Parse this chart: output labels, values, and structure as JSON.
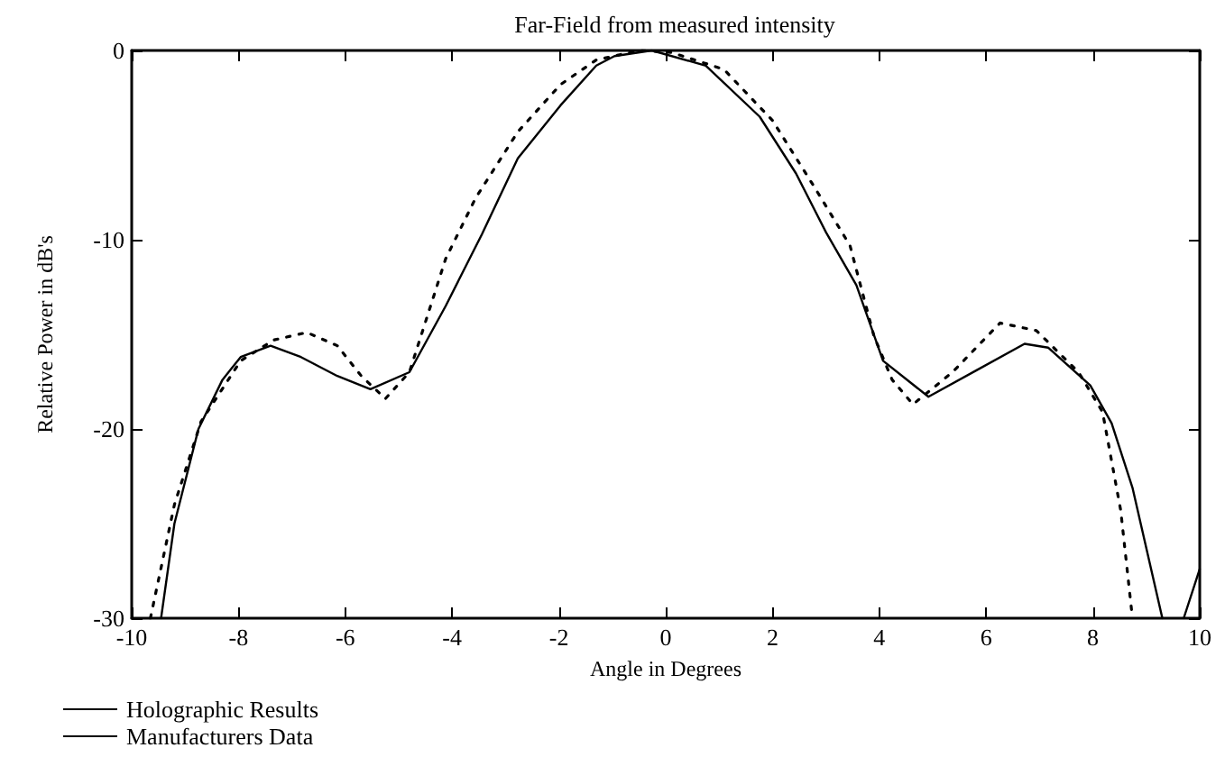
{
  "chart_data": {
    "type": "line",
    "title": "Far-Field from measured intensity",
    "xlabel": "Angle in Degrees",
    "ylabel": "Relative Power in dB's",
    "xlim": [
      -10,
      10
    ],
    "xticks": [
      -10,
      -8,
      -6,
      -4,
      -2,
      0,
      2,
      4,
      6,
      8,
      10
    ],
    "ylim": [
      -30,
      0
    ],
    "yticks": [
      -30,
      -20,
      -10,
      0
    ],
    "grid": false,
    "legend": "bottom left",
    "marker": "none",
    "series": [
      {
        "name": "Holographic Results",
        "color": "#000000",
        "line_style": "solid",
        "x": [
          -9.45,
          -9.2,
          -8.75,
          -8.3,
          -7.96,
          -7.4,
          -6.83,
          -6.15,
          -5.53,
          -4.8,
          -4.12,
          -3.44,
          -2.77,
          -1.97,
          -1.3,
          -0.96,
          -0.26,
          0.75,
          1.76,
          2.44,
          3.0,
          3.57,
          4.07,
          4.92,
          5.82,
          6.72,
          7.16,
          7.95,
          8.35,
          8.74,
          9.3,
          9.5,
          9.7,
          10
        ],
        "values": [
          -30,
          -25,
          -20,
          -17.4,
          -16.2,
          -15.6,
          -16.2,
          -17.2,
          -17.9,
          -17.0,
          -13.5,
          -9.7,
          -5.7,
          -2.9,
          -0.8,
          -0.3,
          0,
          -0.8,
          -3.5,
          -6.5,
          -9.6,
          -12.4,
          -16.4,
          -18.3,
          -16.9,
          -15.5,
          -15.7,
          -17.7,
          -19.7,
          -23.1,
          -30,
          null,
          -30,
          -27.4
        ]
      },
      {
        "name": "Manufacturers Data",
        "color": "#000000",
        "line_style": "dotted",
        "x": [
          -9.65,
          -9.2,
          -8.7,
          -7.96,
          -7.34,
          -6.72,
          -6.15,
          -5.7,
          -5.25,
          -4.8,
          -4.12,
          -3.56,
          -2.77,
          -1.97,
          -1.3,
          -0.5,
          0.1,
          1.09,
          2.0,
          2.78,
          3.45,
          3.9,
          4.24,
          4.63,
          5.37,
          6.26,
          6.94,
          7.73,
          8.18,
          8.52,
          8.74
        ],
        "values": [
          -30,
          -24,
          -19.6,
          -16.4,
          -15.3,
          -14.9,
          -15.6,
          -17.2,
          -18.4,
          -17.0,
          -11.0,
          -7.8,
          -4.3,
          -1.8,
          -0.5,
          0,
          -0.1,
          -1.0,
          -3.7,
          -7.2,
          -10.3,
          -15.1,
          -17.4,
          -18.7,
          -17.0,
          -14.4,
          -14.8,
          -17.0,
          -19.1,
          -24.3,
          -30
        ]
      }
    ]
  }
}
